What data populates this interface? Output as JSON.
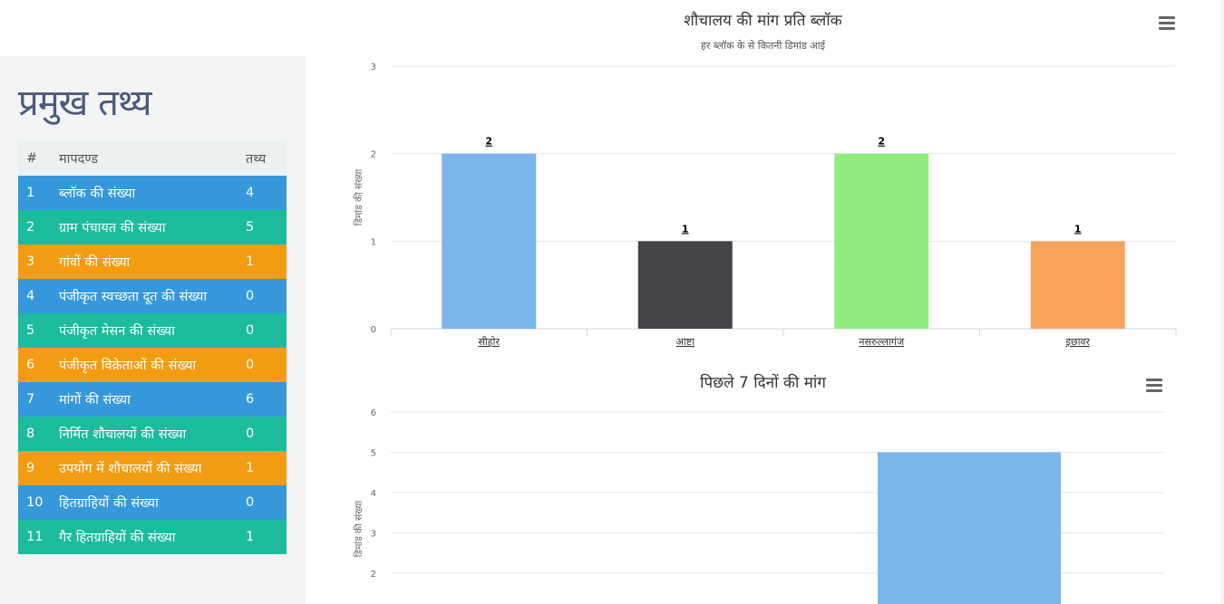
{
  "facts": {
    "title": "प्रमुख तथ्य",
    "headers": {
      "num": "#",
      "criteria": "मापदण्ड",
      "fact": "तथ्य"
    },
    "rows": [
      {
        "num": "1",
        "label": "ब्लॉक की संख्या",
        "value": "4",
        "color": "#3498db"
      },
      {
        "num": "2",
        "label": "ग्राम पंचायत की संख्या",
        "value": "5",
        "color": "#1abc9c"
      },
      {
        "num": "3",
        "label": "गांवों की संख्या",
        "value": "1",
        "color": "#f39c12"
      },
      {
        "num": "4",
        "label": "पंजीकृत स्वच्छता दूत की संख्या",
        "value": "0",
        "color": "#3498db"
      },
      {
        "num": "5",
        "label": "पंजीकृत मेसन की संख्या",
        "value": "0",
        "color": "#1abc9c"
      },
      {
        "num": "6",
        "label": "पंजीकृत विक्रेताओं की संख्या",
        "value": "0",
        "color": "#f39c12"
      },
      {
        "num": "7",
        "label": "मांगों की संख्या",
        "value": "6",
        "color": "#3498db"
      },
      {
        "num": "8",
        "label": "निर्मित शौचालयों की संख्या",
        "value": "0",
        "color": "#1abc9c"
      },
      {
        "num": "9",
        "label": "उपयोग में शौचालयों की संख्या",
        "value": "1",
        "color": "#f39c12"
      },
      {
        "num": "10",
        "label": "हितग्राहियों की संख्या",
        "value": "0",
        "color": "#3498db"
      },
      {
        "num": "11",
        "label": "गैर हितग्राहियों की संख्या",
        "value": "1",
        "color": "#1abc9c"
      }
    ]
  },
  "chart_data": [
    {
      "type": "bar",
      "title": "शौचालय की मांग प्रति ब्लॉक",
      "subtitle": "हर ब्लॉक के से कितनी डिमांड आई",
      "ylabel": "डिमांड की संख्या",
      "xlabel": "",
      "categories": [
        "सीहोर",
        "आष्टा",
        "नसरुल्लागंज",
        "इछावर"
      ],
      "values": [
        2,
        1,
        2,
        1
      ],
      "colors": [
        "#7cb5ec",
        "#434348",
        "#90ed7d",
        "#f7a35c"
      ],
      "ylim": [
        0,
        3
      ],
      "yticks": [
        0,
        1,
        2,
        3
      ],
      "data_labels": true,
      "grid": true
    },
    {
      "type": "bar",
      "title": "पिछले 7 दिनों की मांग",
      "ylabel": "डिमांड की संख्या",
      "xlabel": "",
      "visible_values": [
        5
      ],
      "colors": [
        "#7cb5ec"
      ],
      "ylim": [
        0,
        6
      ],
      "yticks_visible": [
        2,
        3,
        4,
        5,
        6
      ],
      "grid": true
    }
  ]
}
